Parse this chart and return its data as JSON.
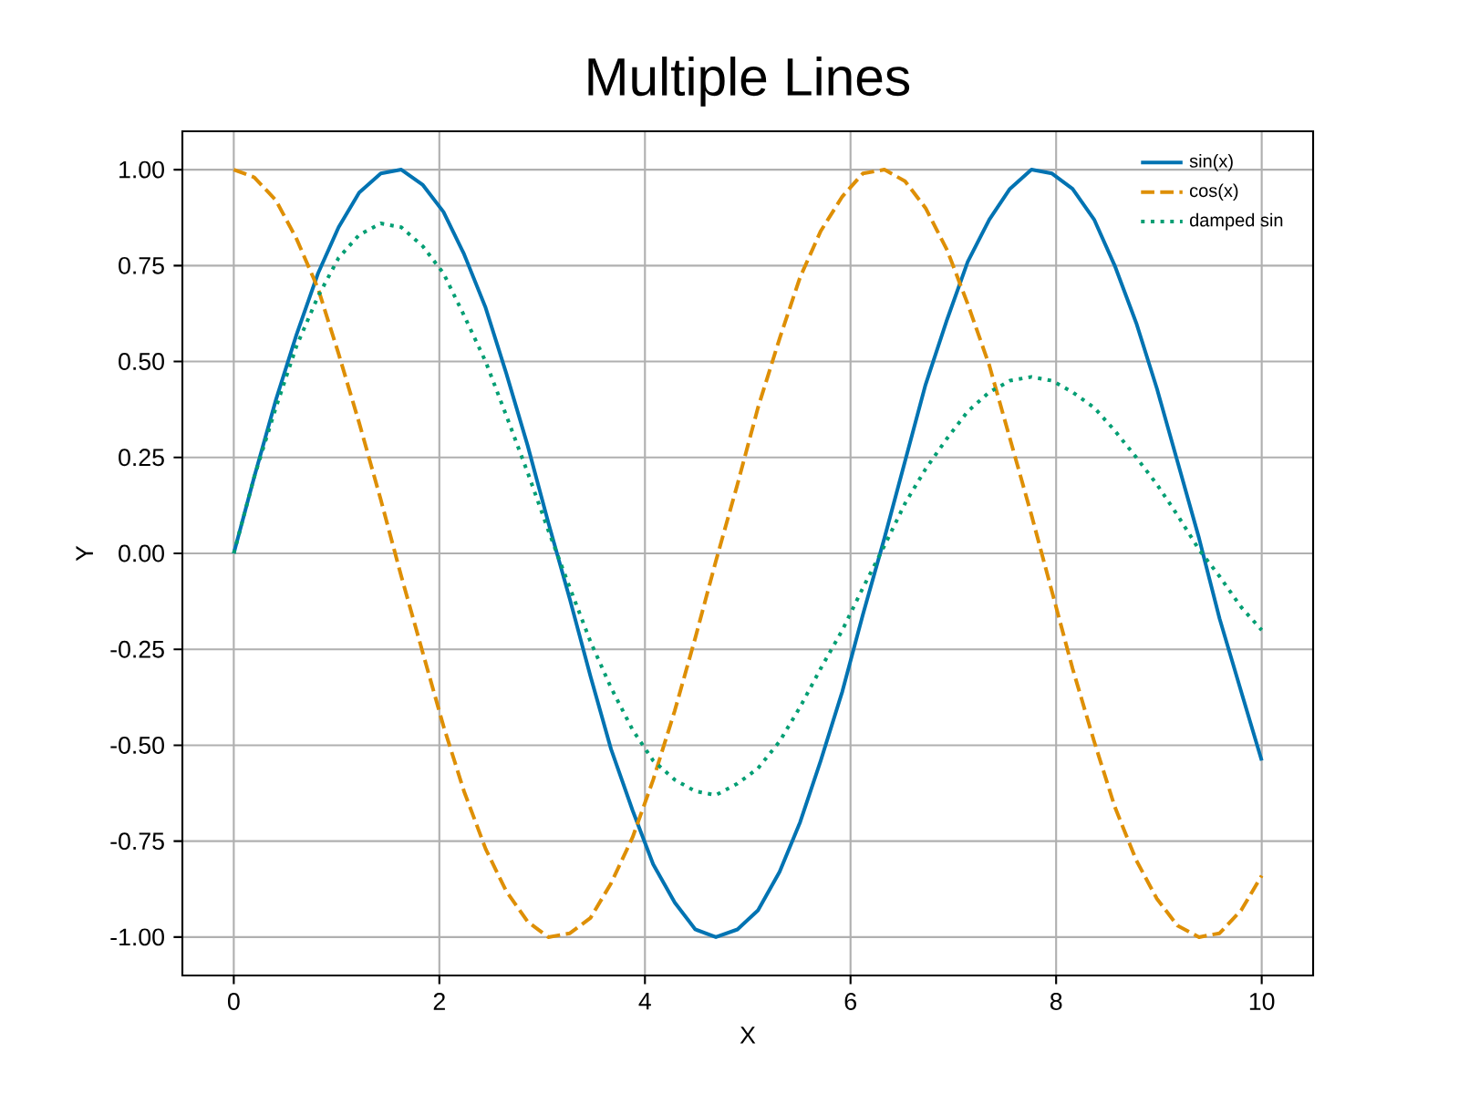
{
  "chart_data": {
    "type": "line",
    "title": "Multiple Lines",
    "xlabel": "X",
    "ylabel": "Y",
    "x": [
      0,
      0.2,
      0.41,
      0.61,
      0.82,
      1.02,
      1.22,
      1.43,
      1.63,
      1.84,
      2.04,
      2.24,
      2.45,
      2.65,
      2.86,
      3.06,
      3.27,
      3.47,
      3.67,
      3.88,
      4.08,
      4.29,
      4.49,
      4.69,
      4.9,
      5.1,
      5.31,
      5.51,
      5.71,
      5.92,
      6.12,
      6.33,
      6.53,
      6.73,
      6.94,
      7.14,
      7.35,
      7.55,
      7.76,
      7.96,
      8.16,
      8.37,
      8.57,
      8.78,
      8.98,
      9.18,
      9.39,
      9.59,
      9.8,
      10
    ],
    "series": [
      {
        "name": "sin(x)",
        "color": "#0173b2",
        "line_style": "solid",
        "values": [
          0,
          0.2,
          0.4,
          0.57,
          0.73,
          0.85,
          0.94,
          0.99,
          1.0,
          0.96,
          0.89,
          0.78,
          0.64,
          0.47,
          0.28,
          0.08,
          -0.12,
          -0.32,
          -0.51,
          -0.67,
          -0.81,
          -0.91,
          -0.98,
          -1.0,
          -0.98,
          -0.93,
          -0.83,
          -0.7,
          -0.54,
          -0.36,
          -0.16,
          0.04,
          0.24,
          0.44,
          0.61,
          0.76,
          0.87,
          0.95,
          1.0,
          0.99,
          0.95,
          0.87,
          0.75,
          0.6,
          0.43,
          0.24,
          0.04,
          -0.17,
          -0.36,
          -0.54
        ]
      },
      {
        "name": "cos(x)",
        "color": "#de8f05",
        "line_style": "dashed",
        "values": [
          1.0,
          0.98,
          0.92,
          0.82,
          0.69,
          0.52,
          0.34,
          0.14,
          -0.06,
          -0.26,
          -0.45,
          -0.62,
          -0.77,
          -0.88,
          -0.96,
          -1.0,
          -0.99,
          -0.95,
          -0.86,
          -0.74,
          -0.59,
          -0.41,
          -0.22,
          -0.02,
          0.18,
          0.38,
          0.56,
          0.72,
          0.84,
          0.93,
          0.99,
          1.0,
          0.97,
          0.9,
          0.79,
          0.65,
          0.49,
          0.3,
          0.1,
          -0.1,
          -0.3,
          -0.49,
          -0.66,
          -0.8,
          -0.9,
          -0.97,
          -1.0,
          -0.99,
          -0.93,
          -0.84
        ]
      },
      {
        "name": "damped sin",
        "color": "#029e73",
        "line_style": "dotted",
        "values": [
          0,
          0.2,
          0.38,
          0.54,
          0.67,
          0.77,
          0.83,
          0.86,
          0.85,
          0.8,
          0.73,
          0.62,
          0.5,
          0.36,
          0.21,
          0.06,
          -0.09,
          -0.23,
          -0.35,
          -0.46,
          -0.54,
          -0.59,
          -0.62,
          -0.63,
          -0.6,
          -0.56,
          -0.49,
          -0.4,
          -0.3,
          -0.2,
          -0.09,
          0.02,
          0.13,
          0.22,
          0.3,
          0.37,
          0.42,
          0.45,
          0.46,
          0.45,
          0.42,
          0.38,
          0.32,
          0.25,
          0.18,
          0.1,
          0.01,
          -0.06,
          -0.14,
          -0.2
        ]
      }
    ],
    "xlim": [
      -0.5,
      10.5
    ],
    "ylim": [
      -1.1,
      1.1
    ],
    "xticks": [
      0,
      2,
      4,
      6,
      8,
      10
    ],
    "yticks": [
      {
        "value": -1,
        "label": "-1.00"
      },
      {
        "value": -0.75,
        "label": "-0.75"
      },
      {
        "value": -0.5,
        "label": "-0.50"
      },
      {
        "value": -0.25,
        "label": "-0.25"
      },
      {
        "value": 0,
        "label": "0.00"
      },
      {
        "value": 0.25,
        "label": "0.25"
      },
      {
        "value": 0.5,
        "label": "0.50"
      },
      {
        "value": 0.75,
        "label": "0.75"
      },
      {
        "value": 1,
        "label": "1.00"
      }
    ],
    "grid": true,
    "legend": "top right"
  }
}
